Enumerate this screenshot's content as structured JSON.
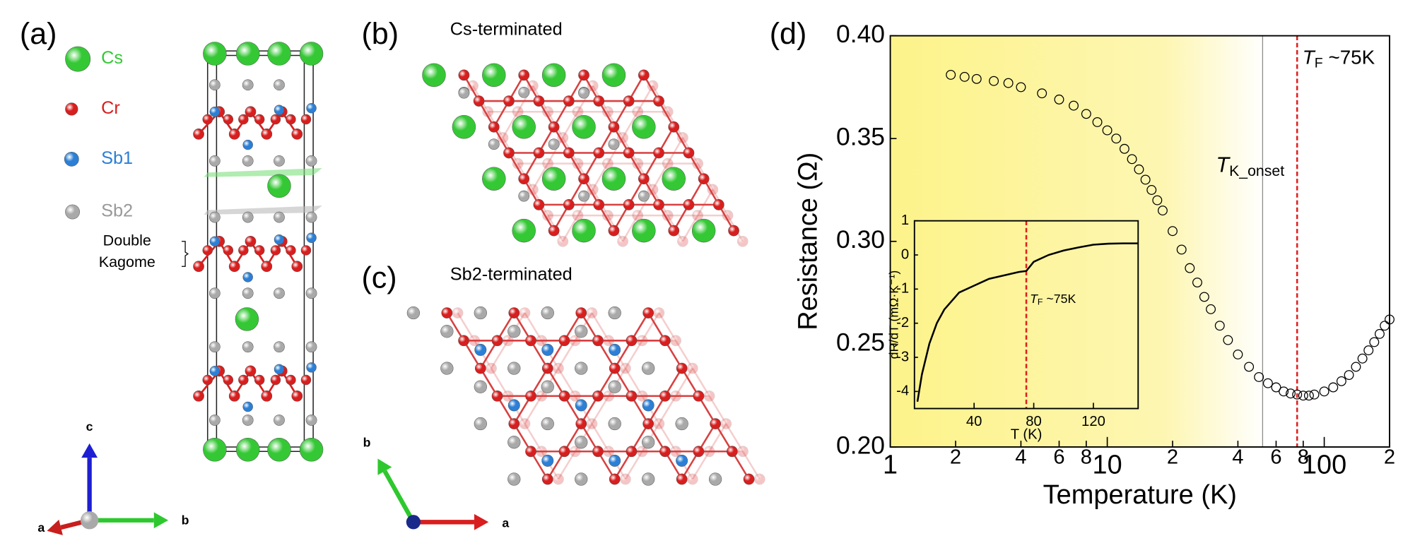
{
  "panels": {
    "a": {
      "label": "(a)",
      "legend": [
        {
          "name": "Cs",
          "color": "#35c835"
        },
        {
          "name": "Cr",
          "color": "#d81e1e"
        },
        {
          "name": "Sb1",
          "color": "#2b7fd6"
        },
        {
          "name": "Sb2",
          "color": "#a9a9a9"
        }
      ],
      "layer": [
        "Double",
        "Kagome"
      ],
      "axes": [
        "c",
        "a",
        "b"
      ]
    },
    "b": {
      "label": "(b)",
      "title": "Cs-terminated"
    },
    "c": {
      "label": "(c)",
      "title": "Sb2-terminated",
      "axes": [
        "b",
        "a"
      ]
    },
    "d": {
      "label": "(d)"
    }
  },
  "chart_data": [
    {
      "type": "scatter",
      "xlabel": "Temperature (K)",
      "ylabel": "Resistance (Ω)",
      "xscale": "log",
      "xlim": [
        1,
        200
      ],
      "ylim": [
        0.2,
        0.4
      ],
      "xticks": [
        1,
        2,
        4,
        6,
        8,
        10,
        {
          "value": 20,
          "label": "2"
        },
        {
          "value": 40,
          "label": "4"
        },
        {
          "value": 60,
          "label": "6"
        },
        {
          "value": 80,
          "label": "8"
        },
        100,
        {
          "value": 200,
          "label": "2"
        }
      ],
      "yticks": [
        {
          "value": 0.2,
          "label": "0.20"
        },
        {
          "value": 0.25,
          "label": "0.25"
        },
        {
          "value": 0.3,
          "label": "0.30"
        },
        {
          "value": 0.35,
          "label": "0.35"
        },
        {
          "value": 0.4,
          "label": "0.40"
        }
      ],
      "color": "#000000",
      "x": [
        1.9,
        2.2,
        2.5,
        3,
        3.5,
        4,
        5,
        6,
        7,
        8,
        9,
        10,
        11,
        12,
        13,
        14,
        15,
        16,
        17,
        18,
        20,
        22,
        24,
        26,
        28,
        30,
        33,
        36,
        40,
        45,
        50,
        55,
        60,
        65,
        70,
        75,
        80,
        85,
        90,
        100,
        110,
        120,
        130,
        140,
        150,
        160,
        170,
        180,
        190,
        200
      ],
      "values": [
        0.381,
        0.38,
        0.379,
        0.378,
        0.377,
        0.375,
        0.372,
        0.369,
        0.366,
        0.362,
        0.358,
        0.354,
        0.35,
        0.345,
        0.34,
        0.335,
        0.33,
        0.325,
        0.32,
        0.315,
        0.305,
        0.296,
        0.287,
        0.28,
        0.273,
        0.267,
        0.259,
        0.252,
        0.245,
        0.239,
        0.234,
        0.231,
        0.229,
        0.227,
        0.226,
        0.2255,
        0.225,
        0.225,
        0.2255,
        0.227,
        0.229,
        0.232,
        0.235,
        0.239,
        0.243,
        0.247,
        0.251,
        0.255,
        0.259,
        0.262
      ],
      "annotations": [
        {
          "x": 52,
          "symbol": "T",
          "subscript": "K_onset",
          "color": "#8a8a8a"
        },
        {
          "x": 75,
          "symbol": "T",
          "subscript": "F",
          "text": " ~75K",
          "color": "#e01e1e"
        }
      ]
    },
    {
      "type": "line",
      "xlabel": "T (K)",
      "ylabel": "dR/dT (mΩ·K⁻¹)",
      "xlim": [
        0,
        150
      ],
      "ylim": [
        -4.5,
        1
      ],
      "xticks": [
        40,
        80,
        120
      ],
      "yticks": [
        1,
        0,
        -1,
        -2,
        -3,
        -4
      ],
      "color": "#000000",
      "x": [
        2,
        5,
        10,
        15,
        20,
        30,
        40,
        50,
        60,
        70,
        75,
        80,
        90,
        100,
        110,
        120,
        130,
        140,
        150
      ],
      "values": [
        -4.3,
        -3.5,
        -2.6,
        -2.0,
        -1.6,
        -1.1,
        -0.9,
        -0.7,
        -0.6,
        -0.5,
        -0.47,
        -0.2,
        0.0,
        0.13,
        0.22,
        0.3,
        0.33,
        0.34,
        0.34
      ],
      "annotations": [
        {
          "x": 75,
          "symbol": "T",
          "subscript": "F",
          "text": " ~75K",
          "color": "#e01e1e"
        }
      ]
    }
  ]
}
